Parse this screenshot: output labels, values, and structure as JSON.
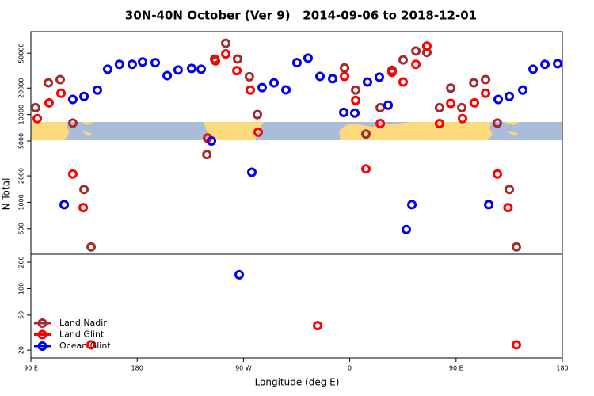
{
  "chart_data": [
    {
      "type": "scatter",
      "title": "30N-40N October (Ver 9)   2014-09-06 to 2018-12-01",
      "y_label": "N Total",
      "log_scale": true,
      "xlim": [
        90,
        540
      ],
      "ylim": [
        256,
        88000
      ],
      "yticks": [
        500,
        1000,
        2000,
        5000,
        10000,
        20000,
        50000
      ],
      "series": [
        {
          "color": "#a52a2a",
          "x": [
            94,
            104.8,
            114.8,
            125.5,
            135,
            141,
            239,
            245.6,
            255,
            265,
            275,
            281.8,
            355.6,
            365,
            373.7,
            385.8,
            395.8,
            405.2,
            416,
            425.3,
            436,
            445.5,
            454.9,
            465,
            475,
            485,
            495.1,
            501.1
          ],
          "values": [
            12000,
            23000,
            25000,
            8000,
            1400,
            310,
            3500,
            43000,
            65000,
            43000,
            27000,
            10000,
            34000,
            19000,
            6000,
            12000,
            32000,
            42000,
            53000,
            51000,
            12000,
            20000,
            12000,
            23000,
            25000,
            8000,
            1400,
            310
          ]
        },
        {
          "color": "#ff0000",
          "x": [
            95.4,
            105.4,
            115.5,
            125.5,
            134.3,
            239.6,
            246.3,
            255,
            264.4,
            275.8,
            282.5,
            355.6,
            365,
            373.7,
            385.8,
            395.8,
            405.2,
            416,
            425.3,
            436,
            445.5,
            455.5,
            465.6,
            475,
            485,
            494
          ],
          "values": [
            9000,
            13600,
            17500,
            2100,
            870,
            5400,
            41000,
            49000,
            31600,
            19000,
            6300,
            27200,
            14500,
            2400,
            7900,
            30300,
            23500,
            37300,
            60400,
            7900,
            13400,
            9000,
            13600,
            17500,
            2100,
            870
          ]
        },
        {
          "color": "#0000ee",
          "x": [
            118.2,
            125.5,
            135,
            146.3,
            155,
            165,
            175.8,
            184.6,
            195.3,
            205.4,
            214.7,
            226.1,
            234.2,
            242.9,
            277.1,
            285.8,
            295.9,
            306,
            315.3,
            324.7,
            334.8,
            345.5,
            354.9,
            364.3,
            375,
            385.1,
            392.5,
            407.9,
            412.6,
            477.7,
            485.7,
            495.1,
            506.5,
            515.2,
            525.3,
            536
          ],
          "values": [
            940,
            14900,
            16100,
            19000,
            32900,
            37300,
            37300,
            39700,
            39000,
            27800,
            32200,
            33600,
            32900,
            5000,
            2200,
            20300,
            23000,
            19100,
            39000,
            44000,
            27200,
            25600,
            10600,
            10400,
            23500,
            26700,
            12800,
            490,
            940,
            940,
            14900,
            16100,
            19000,
            32900,
            37300,
            38000
          ]
        }
      ]
    },
    {
      "type": "scatter",
      "x_label": "Longitude (deg E)",
      "log_scale": true,
      "legend": "lower left",
      "xlim": [
        90,
        540
      ],
      "xticks": [
        {
          "value": 90,
          "label": "90 E"
        },
        180,
        {
          "value": 270,
          "label": "90 W"
        },
        {
          "value": 360,
          "label": "0"
        },
        {
          "value": 450,
          "label": "90 E"
        },
        {
          "value": 540,
          "label": "180"
        }
      ],
      "ylim": [
        16.3,
        246
      ],
      "yticks": [
        20,
        50,
        100,
        200
      ],
      "series": [
        {
          "name": "Land Nadir",
          "color": "#a52a2a",
          "x": [],
          "values": []
        },
        {
          "name": "Land Glint",
          "color": "#ff0000",
          "x": [
            141,
            332.8,
            501.1
          ],
          "values": [
            23,
            38,
            23
          ]
        },
        {
          "name": "Ocean Glint",
          "color": "#0000ee",
          "x": [
            266.4
          ],
          "values": [
            144
          ]
        }
      ]
    }
  ]
}
